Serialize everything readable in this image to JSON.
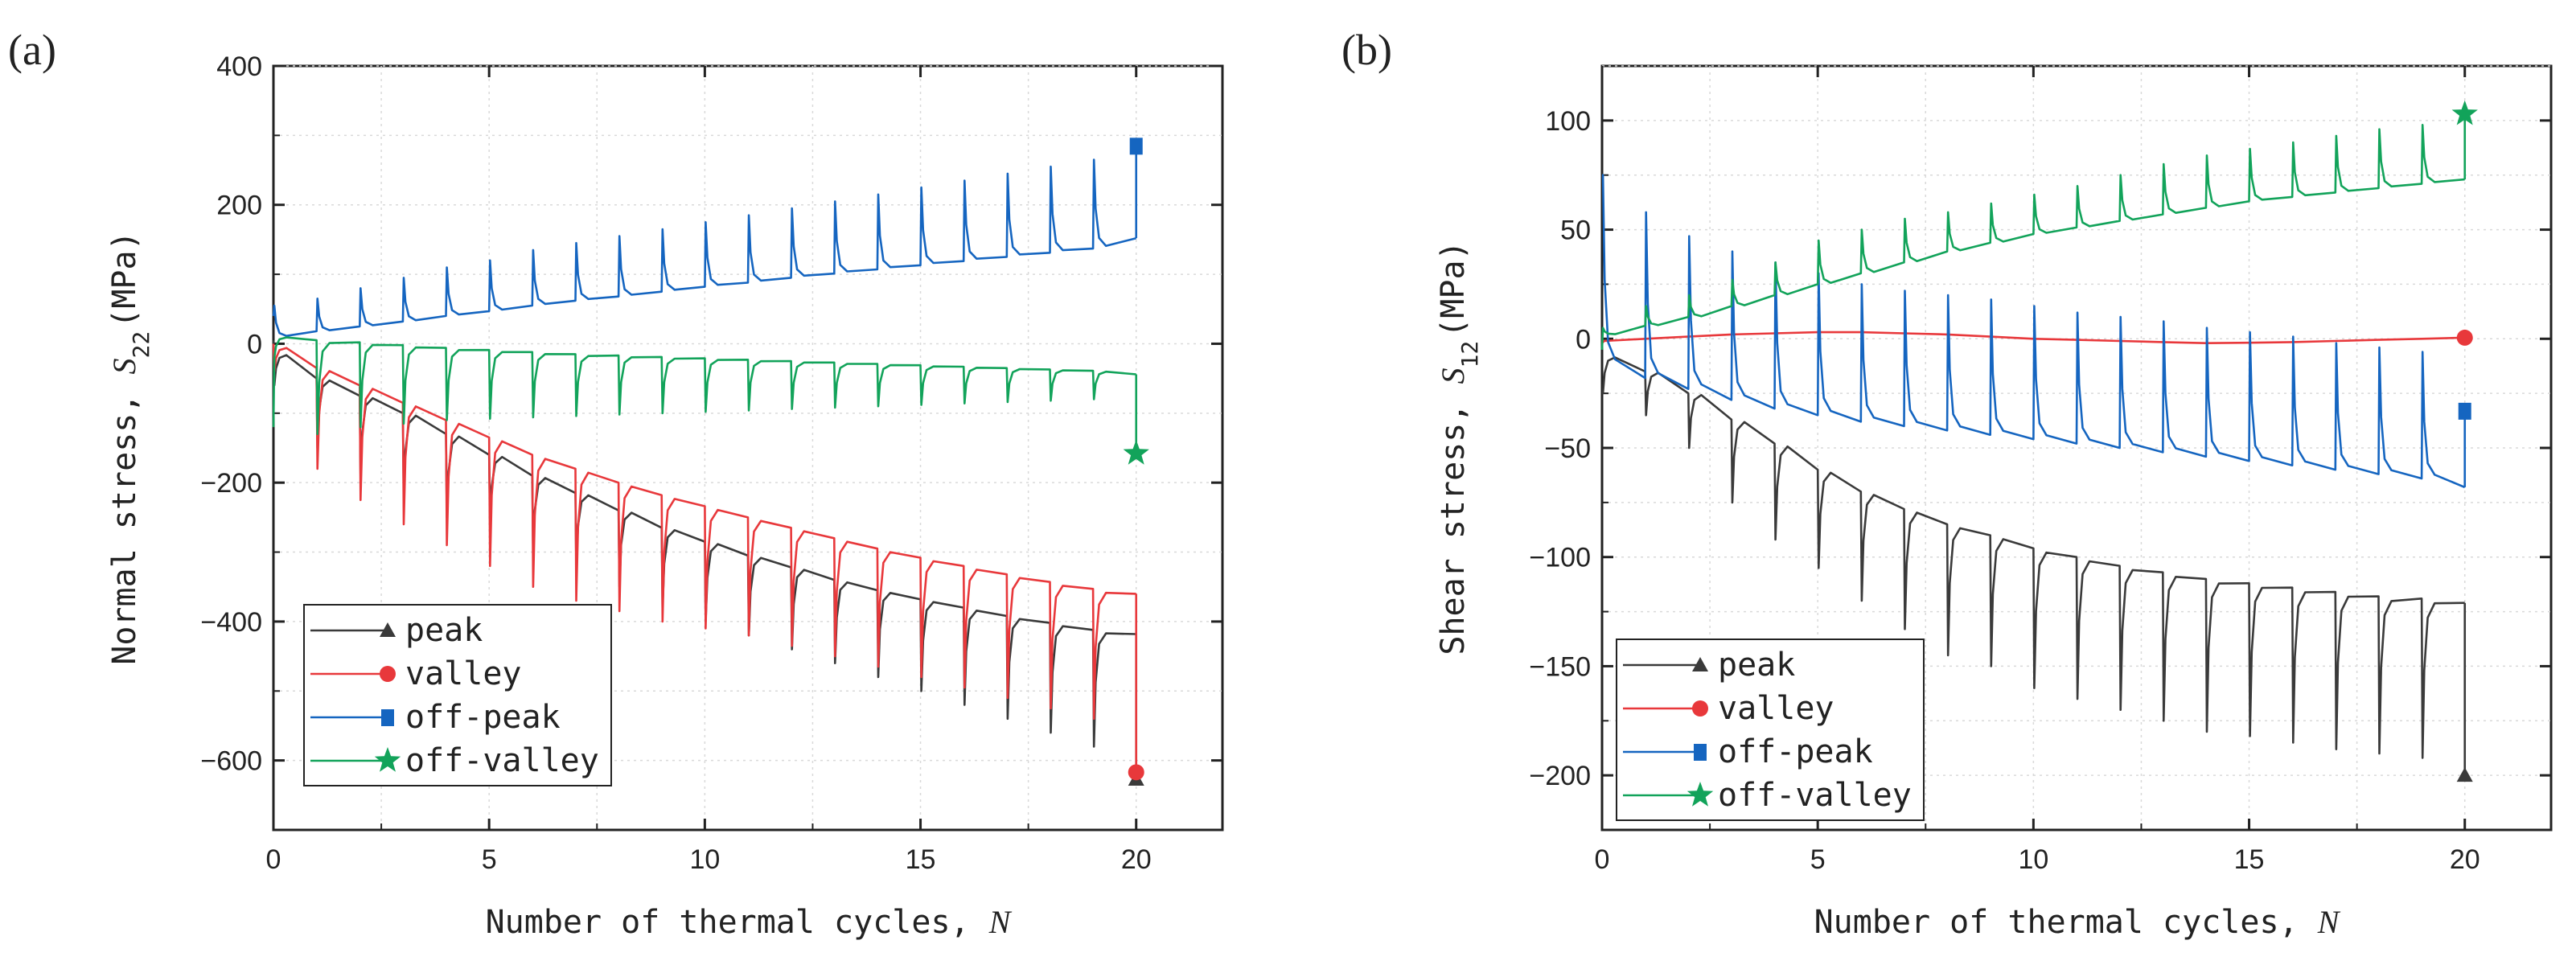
{
  "chart_data": [
    {
      "panel": "(a)",
      "type": "line",
      "ylabel": "Normal stress, ",
      "ylabel_symbol": "S",
      "ylabel_sub": "22",
      "ylabel_unit": "(MPa)",
      "xlabel": "Number of thermal cycles, ",
      "xlabel_symbol": "N",
      "xlim": [
        0,
        22
      ],
      "ylim": [
        -700,
        400
      ],
      "xticks": [
        0,
        5,
        10,
        15,
        20
      ],
      "yticks": [
        400,
        200,
        0,
        -200,
        -400,
        -600
      ],
      "yticklabels": [
        "400",
        "200",
        "0",
        "−200",
        "−400",
        "−600"
      ],
      "legend": [
        "peak",
        "valley",
        "off-peak",
        "off-valley"
      ],
      "series": [
        {
          "name": "peak",
          "color": "#3a3a3a",
          "marker": "triangle",
          "start": 5,
          "spike_dir": -1,
          "base": [
            -15,
            -50,
            -75,
            -100,
            -130,
            -160,
            -190,
            -215,
            -240,
            -265,
            -285,
            -305,
            -322,
            -340,
            -355,
            -368,
            -380,
            -392,
            -402,
            -412,
            -418
          ],
          "spike": [
            -60,
            -150,
            -190,
            -220,
            -250,
            -260,
            -300,
            -320,
            -350,
            -380,
            -400,
            -420,
            -440,
            -460,
            -480,
            -500,
            -520,
            -540,
            -560,
            -580,
            -600
          ],
          "end": [
            20,
            -627
          ]
        },
        {
          "name": "valley",
          "color": "#e8383b",
          "marker": "circle",
          "start": 0,
          "spike_dir": -1,
          "base": [
            -5,
            -35,
            -60,
            -85,
            -110,
            -135,
            -160,
            -180,
            -200,
            -218,
            -234,
            -250,
            -265,
            -280,
            -295,
            -308,
            -320,
            -332,
            -343,
            -353,
            -360
          ],
          "spike": [
            -40,
            -180,
            -225,
            -260,
            -290,
            -320,
            -350,
            -370,
            -385,
            -400,
            -410,
            -420,
            -435,
            -450,
            -465,
            -480,
            -495,
            -510,
            -525,
            -540,
            -560
          ],
          "end": [
            20,
            -617
          ]
        },
        {
          "name": "off-peak",
          "color": "#1565c0",
          "marker": "square",
          "start": 40,
          "spike_dir": 1,
          "base": [
            10,
            18,
            25,
            32,
            40,
            47,
            55,
            62,
            68,
            75,
            82,
            88,
            95,
            101,
            107,
            113,
            119,
            125,
            131,
            137,
            152
          ],
          "spike": [
            55,
            65,
            80,
            95,
            110,
            120,
            135,
            145,
            155,
            165,
            175,
            185,
            195,
            205,
            215,
            225,
            235,
            245,
            255,
            265,
            275
          ],
          "end": [
            20,
            285
          ]
        },
        {
          "name": "off-valley",
          "color": "#12a35a",
          "marker": "star",
          "start": -120,
          "spike_dir": -1,
          "base": [
            10,
            5,
            2,
            -2,
            -6,
            -9,
            -12,
            -15,
            -17,
            -19,
            -21,
            -23,
            -25,
            -27,
            -29,
            -31,
            -33,
            -35,
            -37,
            -39,
            -44
          ],
          "spike": [
            -20,
            -130,
            -120,
            -115,
            -110,
            -108,
            -106,
            -104,
            -102,
            -100,
            -98,
            -96,
            -94,
            -92,
            -90,
            -88,
            -86,
            -84,
            -82,
            -80,
            -78
          ],
          "end": [
            20,
            -158
          ]
        }
      ]
    },
    {
      "panel": "(b)",
      "type": "line",
      "ylabel": "Shear stress, ",
      "ylabel_symbol": "S",
      "ylabel_sub": "12",
      "ylabel_unit": "(MPa)",
      "xlabel": "Number of thermal cycles, ",
      "xlabel_symbol": "N",
      "xlim": [
        0,
        22
      ],
      "ylim": [
        -225,
        125
      ],
      "xticks": [
        0,
        5,
        10,
        15,
        20
      ],
      "yticks": [
        100,
        50,
        0,
        -50,
        -100,
        -150,
        -200
      ],
      "yticklabels": [
        "100",
        "50",
        "0",
        "−50",
        "−100",
        "−150",
        "−200"
      ],
      "legend": [
        "peak",
        "valley",
        "off-peak",
        "off-valley"
      ],
      "series": [
        {
          "name": "peak",
          "color": "#3a3a3a",
          "marker": "triangle",
          "start": -25,
          "spike_dir": -1,
          "base": [
            -8,
            -15,
            -25,
            -37,
            -48,
            -60,
            -70,
            -78,
            -85,
            -90,
            -96,
            -100,
            -104,
            -107,
            -110,
            -112,
            -114,
            -116,
            -118,
            -119,
            -121
          ],
          "spike": [
            -25,
            -35,
            -50,
            -75,
            -92,
            -105,
            -120,
            -133,
            -145,
            -150,
            -160,
            -165,
            -170,
            -175,
            -180,
            -182,
            -185,
            -188,
            -190,
            -192,
            -195
          ],
          "end": [
            20,
            -200
          ]
        },
        {
          "name": "valley",
          "color": "#e8383b",
          "marker": "circle",
          "start": -2,
          "spike_dir": 0,
          "base": [
            -1,
            0,
            1,
            2,
            2.5,
            3,
            3,
            2.5,
            2,
            1,
            0,
            -0.5,
            -1,
            -1.5,
            -2,
            -1.8,
            -1.5,
            -1,
            -0.5,
            0,
            0.5
          ],
          "spike": [],
          "end": [
            20,
            0.5
          ]
        },
        {
          "name": "off-peak",
          "color": "#1565c0",
          "marker": "square",
          "start": 75,
          "spike_dir": 1,
          "base": [
            -12,
            -18,
            -23,
            -28,
            -32,
            -35,
            -38,
            -40,
            -42,
            -44,
            -46,
            -48,
            -50,
            -52,
            -54,
            -56,
            -58,
            -60,
            -62,
            -64,
            -68
          ],
          "spike": [
            75,
            58,
            47,
            40,
            35,
            30,
            25,
            22,
            20,
            18,
            15,
            12,
            10,
            8,
            5,
            3,
            1,
            -2,
            -4,
            -6,
            -8
          ],
          "end": [
            20,
            -33
          ]
        },
        {
          "name": "off-valley",
          "color": "#12a35a",
          "marker": "star",
          "start": -5,
          "spike_dir": 1,
          "base": [
            2,
            6,
            10,
            15,
            20,
            25,
            30,
            35,
            40,
            44,
            48,
            51,
            54,
            57,
            60,
            63,
            65,
            67,
            69,
            71,
            73
          ],
          "spike": [
            5,
            15,
            20,
            27,
            35,
            45,
            50,
            55,
            58,
            62,
            66,
            70,
            75,
            80,
            84,
            87,
            90,
            93,
            96,
            98,
            100
          ],
          "end": [
            20,
            103
          ]
        }
      ]
    }
  ]
}
